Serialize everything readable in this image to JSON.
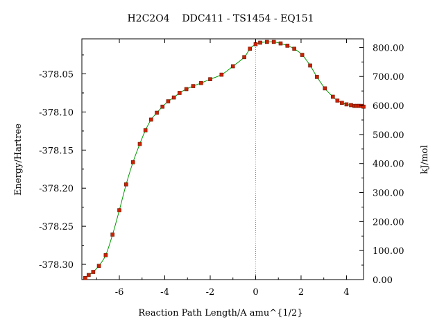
{
  "chart_data": {
    "type": "line",
    "title": "H2C2O4    DDC411 - TS1454 - EQ151",
    "xlabel": "Reaction Path Length/A amu^{1/2}",
    "ylabel": "Energy/Hartree",
    "y2label": "kJ/mol",
    "xlim": [
      -7.65,
      4.75
    ],
    "ylim": [
      -378.32,
      -378.004
    ],
    "y2lim": [
      0,
      829.7
    ],
    "x_ticks": [
      -6,
      -4,
      -2,
      0,
      2,
      4
    ],
    "x_tick_labels": [
      "-6",
      "-4",
      "-2",
      "0",
      "2",
      "4"
    ],
    "y_ticks": [
      -378.05,
      -378.1,
      -378.15,
      -378.2,
      -378.25,
      -378.3
    ],
    "y_tick_labels": [
      "-378.05",
      "-378.10",
      "-378.15",
      "-378.20",
      "-378.25",
      "-378.30"
    ],
    "y2_ticks": [
      0,
      100,
      200,
      300,
      400,
      500,
      600,
      700,
      800
    ],
    "y2_tick_labels": [
      "0.00",
      "100.00",
      "200.00",
      "300.00",
      "400.00",
      "500.00",
      "600.00",
      "700.00",
      "800.00"
    ],
    "ts_marker_x": 0,
    "grid": false,
    "line_color": "#009900",
    "marker_color": "#cc2200",
    "series": [
      {
        "x": [
          -7.5,
          -7.35,
          -7.15,
          -6.9,
          -6.6,
          -6.3,
          -6.0,
          -5.7,
          -5.4,
          -5.1,
          -4.85,
          -4.6,
          -4.35,
          -4.1,
          -3.85,
          -3.6,
          -3.35,
          -3.05,
          -2.75,
          -2.4,
          -2.0,
          -1.5,
          -1.0,
          -0.5,
          -0.25,
          0.0,
          0.2,
          0.5,
          0.8,
          1.1,
          1.4,
          1.7,
          2.05,
          2.4,
          2.7,
          3.05,
          3.4,
          3.6,
          3.8,
          4.0,
          4.2,
          4.35,
          4.45,
          4.55,
          4.65,
          4.75
        ],
        "y": [
          -378.318,
          -378.314,
          -378.31,
          -378.302,
          -378.288,
          -378.261,
          -378.229,
          -378.195,
          -378.166,
          -378.142,
          -378.124,
          -378.11,
          -378.101,
          -378.093,
          -378.086,
          -378.081,
          -378.075,
          -378.07,
          -378.066,
          -378.062,
          -378.057,
          -378.051,
          -378.04,
          -378.028,
          -378.017,
          -378.011,
          -378.009,
          -378.008,
          -378.008,
          -378.01,
          -378.013,
          -378.017,
          -378.025,
          -378.039,
          -378.054,
          -378.069,
          -378.08,
          -378.085,
          -378.088,
          -378.09,
          -378.091,
          -378.092,
          -378.092,
          -378.092,
          -378.092,
          -378.093
        ]
      }
    ]
  }
}
